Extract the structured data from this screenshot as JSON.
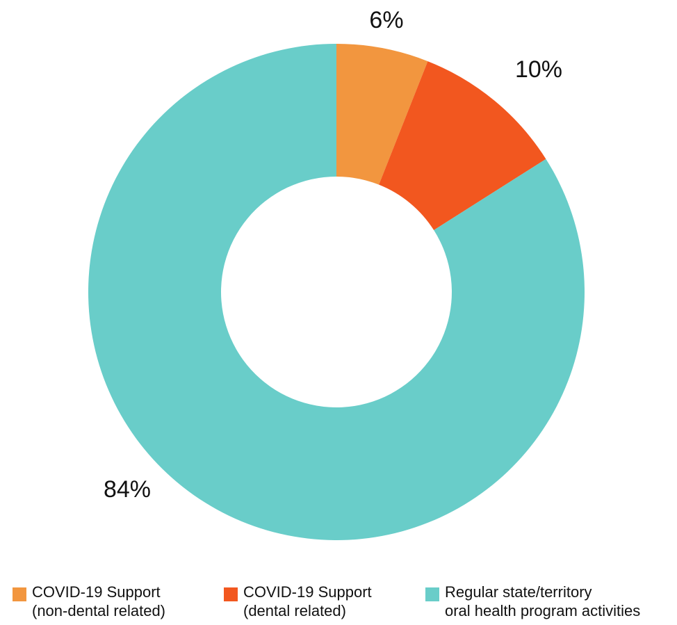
{
  "chart_data": {
    "type": "pie",
    "donut": true,
    "slices": [
      {
        "label_line1": "COVID-19 Support",
        "label_line2": "(non-dental related)",
        "value": 6,
        "value_label": "6%",
        "color": "#f2963f"
      },
      {
        "label_line1": "COVID-19 Support",
        "label_line2": "(dental related)",
        "value": 10,
        "value_label": "10%",
        "color": "#f2571f"
      },
      {
        "label_line1": "Regular state/territory",
        "label_line2": "oral health program activities",
        "value": 84,
        "value_label": "84%",
        "color": "#69cdc9"
      }
    ],
    "legend_placement": "bottom"
  }
}
